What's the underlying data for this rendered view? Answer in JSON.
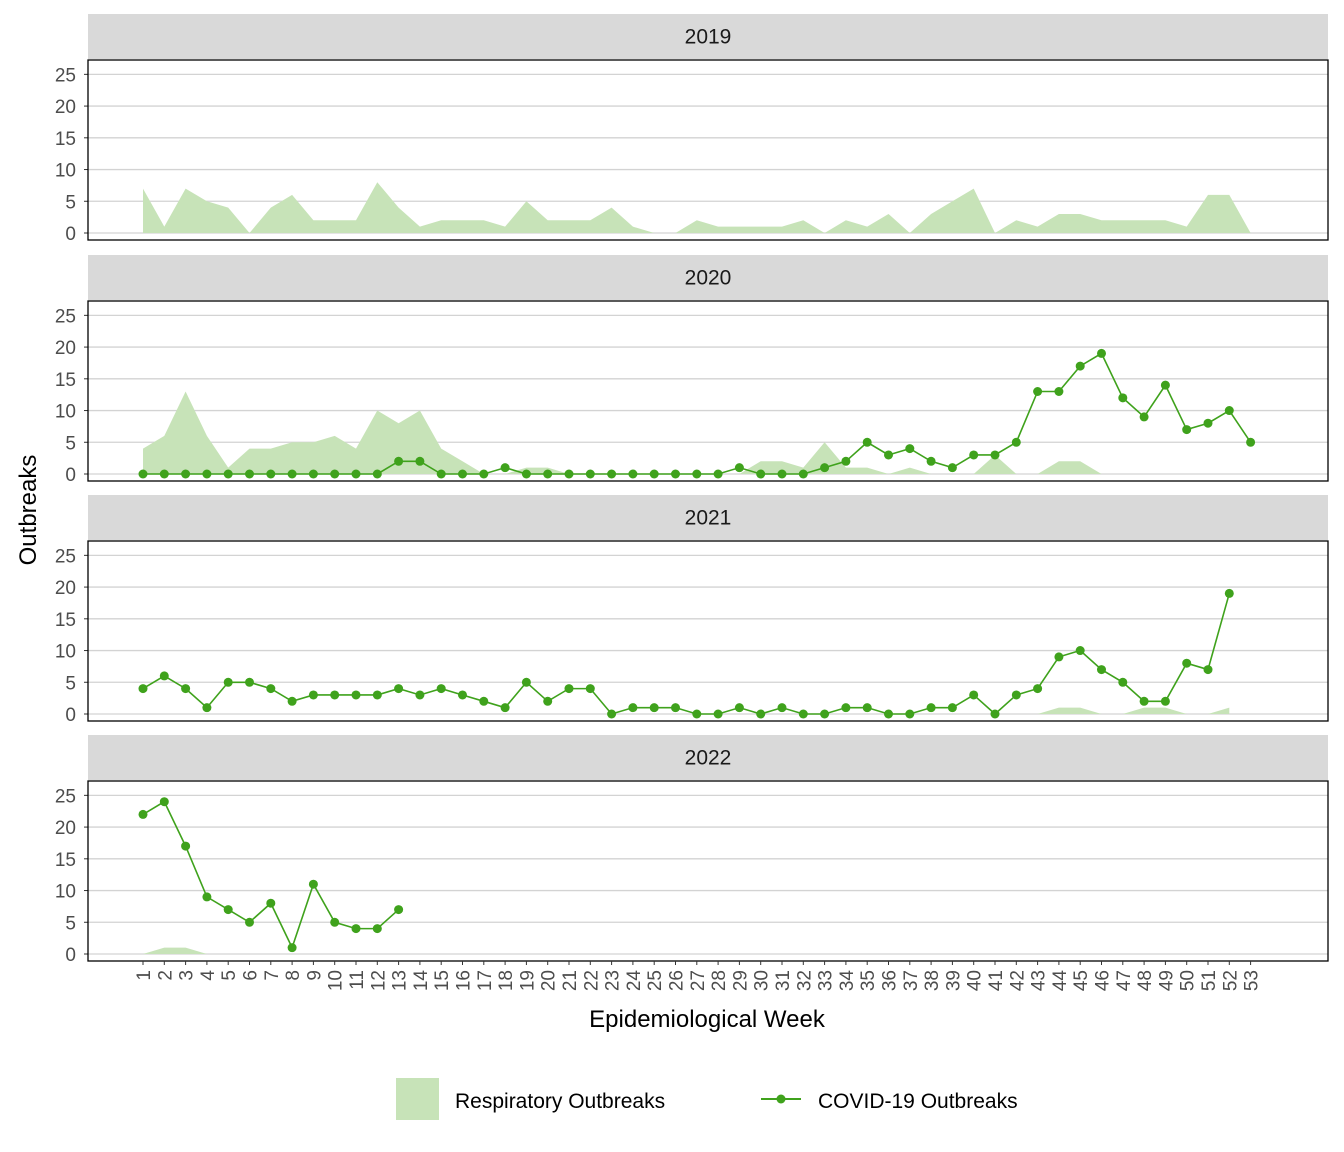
{
  "colors": {
    "respiratory_fill": "#c7e3b8",
    "covid_line": "#3fa21c",
    "grid": "#d3d3d3",
    "strip_bg": "#d9d9d9",
    "panel_border": "#000000"
  },
  "chart_data": {
    "type": "area",
    "xlabel": "Epidemiological Week",
    "ylabel": "Outbreaks",
    "ylim": [
      0,
      26
    ],
    "yticks": [
      0,
      5,
      10,
      15,
      20,
      25
    ],
    "weeks": [
      1,
      2,
      3,
      4,
      5,
      6,
      7,
      8,
      9,
      10,
      11,
      12,
      13,
      14,
      15,
      16,
      17,
      18,
      19,
      20,
      21,
      22,
      23,
      24,
      25,
      26,
      27,
      28,
      29,
      30,
      31,
      32,
      33,
      34,
      35,
      36,
      37,
      38,
      39,
      40,
      41,
      42,
      43,
      44,
      45,
      46,
      47,
      48,
      49,
      50,
      51,
      52,
      53
    ],
    "grid": true,
    "legend_position": "bottom",
    "legend": [
      {
        "label": "Respiratory Outbreaks",
        "kind": "area"
      },
      {
        "label": "COVID-19 Outbreaks",
        "kind": "line-point"
      }
    ],
    "panels": [
      {
        "label": "2019",
        "series": [
          {
            "name": "Respiratory Outbreaks",
            "type": "area",
            "x": [
              1,
              2,
              3,
              4,
              5,
              6,
              7,
              8,
              9,
              10,
              11,
              12,
              13,
              14,
              15,
              16,
              17,
              18,
              19,
              20,
              21,
              22,
              23,
              24,
              25,
              26,
              27,
              28,
              29,
              30,
              31,
              32,
              33,
              34,
              35,
              36,
              37,
              38,
              39,
              40,
              41,
              42,
              43,
              44,
              45,
              46,
              47,
              48,
              49,
              50,
              51,
              52,
              53
            ],
            "values": [
              7,
              1,
              7,
              5,
              4,
              0,
              4,
              6,
              2,
              2,
              2,
              8,
              4,
              1,
              2,
              2,
              2,
              1,
              5,
              2,
              2,
              2,
              4,
              1,
              0,
              0,
              2,
              1,
              1,
              1,
              1,
              2,
              0,
              2,
              1,
              3,
              0,
              3,
              5,
              7,
              0,
              2,
              1,
              3,
              3,
              2,
              2,
              2,
              2,
              1,
              6,
              6,
              0
            ]
          }
        ]
      },
      {
        "label": "2020",
        "series": [
          {
            "name": "Respiratory Outbreaks",
            "type": "area",
            "x": [
              1,
              2,
              3,
              4,
              5,
              6,
              7,
              8,
              9,
              10,
              11,
              12,
              13,
              14,
              15,
              16,
              17,
              18,
              19,
              20,
              21,
              22,
              23,
              24,
              25,
              26,
              27,
              28,
              29,
              30,
              31,
              32,
              33,
              34,
              35,
              36,
              37,
              38,
              39,
              40,
              41,
              42,
              43,
              44,
              45,
              46
            ],
            "values": [
              4,
              6,
              13,
              6,
              1,
              4,
              4,
              5,
              5,
              6,
              4,
              10,
              8,
              10,
              4,
              2,
              0,
              0,
              1,
              1,
              0,
              0,
              0,
              0,
              0,
              0,
              0,
              0,
              0,
              2,
              2,
              1,
              5,
              1,
              1,
              0,
              1,
              0,
              0,
              0,
              3,
              0,
              0,
              2,
              2,
              0
            ]
          },
          {
            "name": "COVID-19 Outbreaks",
            "type": "line",
            "x": [
              1,
              2,
              3,
              4,
              5,
              6,
              7,
              8,
              9,
              10,
              11,
              12,
              13,
              14,
              15,
              16,
              17,
              18,
              19,
              20,
              21,
              22,
              23,
              24,
              25,
              26,
              27,
              28,
              29,
              30,
              31,
              32,
              33,
              34,
              35,
              36,
              37,
              38,
              39,
              40,
              41,
              42,
              43,
              44,
              45,
              46,
              47,
              48,
              49,
              50,
              51,
              52,
              53
            ],
            "values": [
              0,
              0,
              0,
              0,
              0,
              0,
              0,
              0,
              0,
              0,
              0,
              0,
              2,
              2,
              0,
              0,
              0,
              1,
              0,
              0,
              0,
              0,
              0,
              0,
              0,
              0,
              0,
              0,
              1,
              0,
              0,
              0,
              1,
              2,
              5,
              3,
              4,
              2,
              1,
              3,
              3,
              5,
              13,
              13,
              17,
              19,
              12,
              9,
              14,
              7,
              8,
              10,
              5
            ]
          }
        ]
      },
      {
        "label": "2021",
        "series": [
          {
            "name": "Respiratory Outbreaks",
            "type": "area",
            "x": [
              38,
              39,
              40,
              41,
              42,
              43,
              44,
              45,
              46,
              47,
              48,
              49,
              50,
              51,
              52
            ],
            "values": [
              0,
              0,
              0,
              0,
              0,
              0,
              1,
              1,
              0,
              0,
              1,
              1,
              0,
              0,
              1
            ]
          },
          {
            "name": "COVID-19 Outbreaks",
            "type": "line",
            "x": [
              1,
              2,
              3,
              4,
              5,
              6,
              7,
              8,
              9,
              10,
              11,
              12,
              13,
              14,
              15,
              16,
              17,
              18,
              19,
              20,
              21,
              22,
              23,
              24,
              25,
              26,
              27,
              28,
              29,
              30,
              31,
              32,
              33,
              34,
              35,
              36,
              37,
              38,
              39,
              40,
              41,
              42,
              43,
              44,
              45,
              46,
              47,
              48,
              49,
              50,
              51,
              52
            ],
            "values": [
              4,
              6,
              4,
              1,
              5,
              5,
              4,
              2,
              3,
              3,
              3,
              3,
              4,
              3,
              4,
              3,
              2,
              1,
              5,
              2,
              4,
              4,
              0,
              1,
              1,
              1,
              0,
              0,
              1,
              0,
              1,
              0,
              0,
              1,
              1,
              0,
              0,
              1,
              1,
              3,
              0,
              3,
              4,
              9,
              10,
              7,
              5,
              2,
              2,
              8,
              7,
              19
            ]
          }
        ]
      },
      {
        "label": "2022",
        "series": [
          {
            "name": "Respiratory Outbreaks",
            "type": "area",
            "x": [
              1,
              2,
              3,
              4
            ],
            "values": [
              0,
              1,
              1,
              0
            ]
          },
          {
            "name": "COVID-19 Outbreaks",
            "type": "line",
            "x": [
              1,
              2,
              3,
              4,
              5,
              6,
              7,
              8,
              9,
              10,
              11,
              12,
              13
            ],
            "values": [
              22,
              24,
              17,
              9,
              7,
              5,
              8,
              1,
              11,
              5,
              4,
              4,
              7
            ]
          }
        ]
      }
    ]
  }
}
